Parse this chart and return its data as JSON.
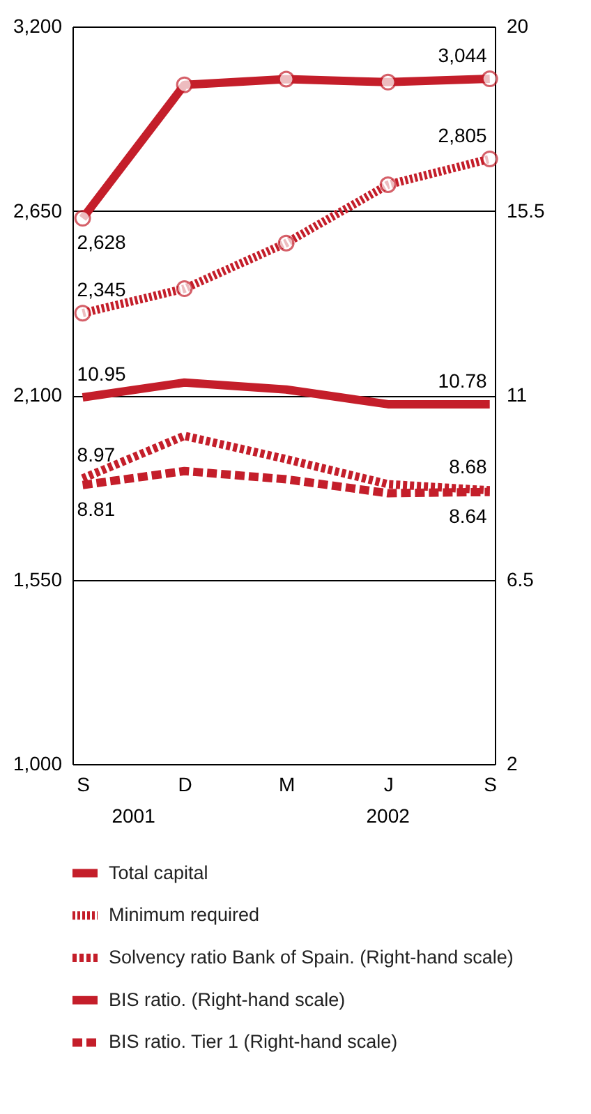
{
  "chart_data": {
    "type": "line",
    "categories": [
      "S",
      "D",
      "M",
      "J",
      "S"
    ],
    "ylim": [
      1000,
      3200
    ],
    "yticks": [
      {
        "value": 1000,
        "label": "1,000"
      },
      {
        "value": 1550,
        "label": "1,550"
      },
      {
        "value": 2100,
        "label": "2,100"
      },
      {
        "value": 2650,
        "label": "2,650"
      },
      {
        "value": 3200,
        "label": "3,200"
      }
    ],
    "y2lim": [
      2,
      20
    ],
    "y2ticks": [
      2,
      6.5,
      11,
      15.5,
      20
    ],
    "grid": "y",
    "legend": "bottom",
    "annotations": [
      "2001",
      "2002"
    ],
    "series": [
      {
        "name": "Total capital",
        "color": "#c41e2a",
        "line_style": "solid",
        "marker": "circle",
        "values": [
          2628,
          3026,
          3043,
          3034,
          3044
        ],
        "value_labels": [
          "2,628",
          null,
          null,
          null,
          "3,044"
        ]
      },
      {
        "name": "Minimum required",
        "color": "#c41e2a",
        "line_style": "dashed",
        "marker": "circle",
        "values": [
          2345,
          2418,
          2554,
          2728,
          2805
        ],
        "value_labels": [
          "2,345",
          null,
          null,
          null,
          "2,805"
        ]
      },
      {
        "name": "Solvency ratio Bank of Spain. (Right-hand scale)",
        "color": "#c41e2a",
        "line_style": "dotted",
        "axis": "y2",
        "values": [
          8.97,
          10.01,
          9.44,
          8.83,
          8.68
        ],
        "value_labels": [
          "8.97",
          null,
          null,
          null,
          "8.68"
        ]
      },
      {
        "name": "BIS ratio.  (Right-hand scale)",
        "color": "#c41e2a",
        "line_style": "solid",
        "axis": "y2",
        "values": [
          10.95,
          11.31,
          11.14,
          10.78,
          10.78
        ],
        "value_labels": [
          "10.95",
          null,
          null,
          null,
          "10.78"
        ]
      },
      {
        "name": "BIS ratio. Tier 1 (Right-hand scale)",
        "color": "#c41e2a",
        "line_style": "dashed",
        "axis": "y2",
        "values": [
          8.81,
          9.15,
          8.95,
          8.61,
          8.64
        ],
        "value_labels": [
          "8.81",
          null,
          null,
          null,
          "8.64"
        ]
      }
    ]
  }
}
